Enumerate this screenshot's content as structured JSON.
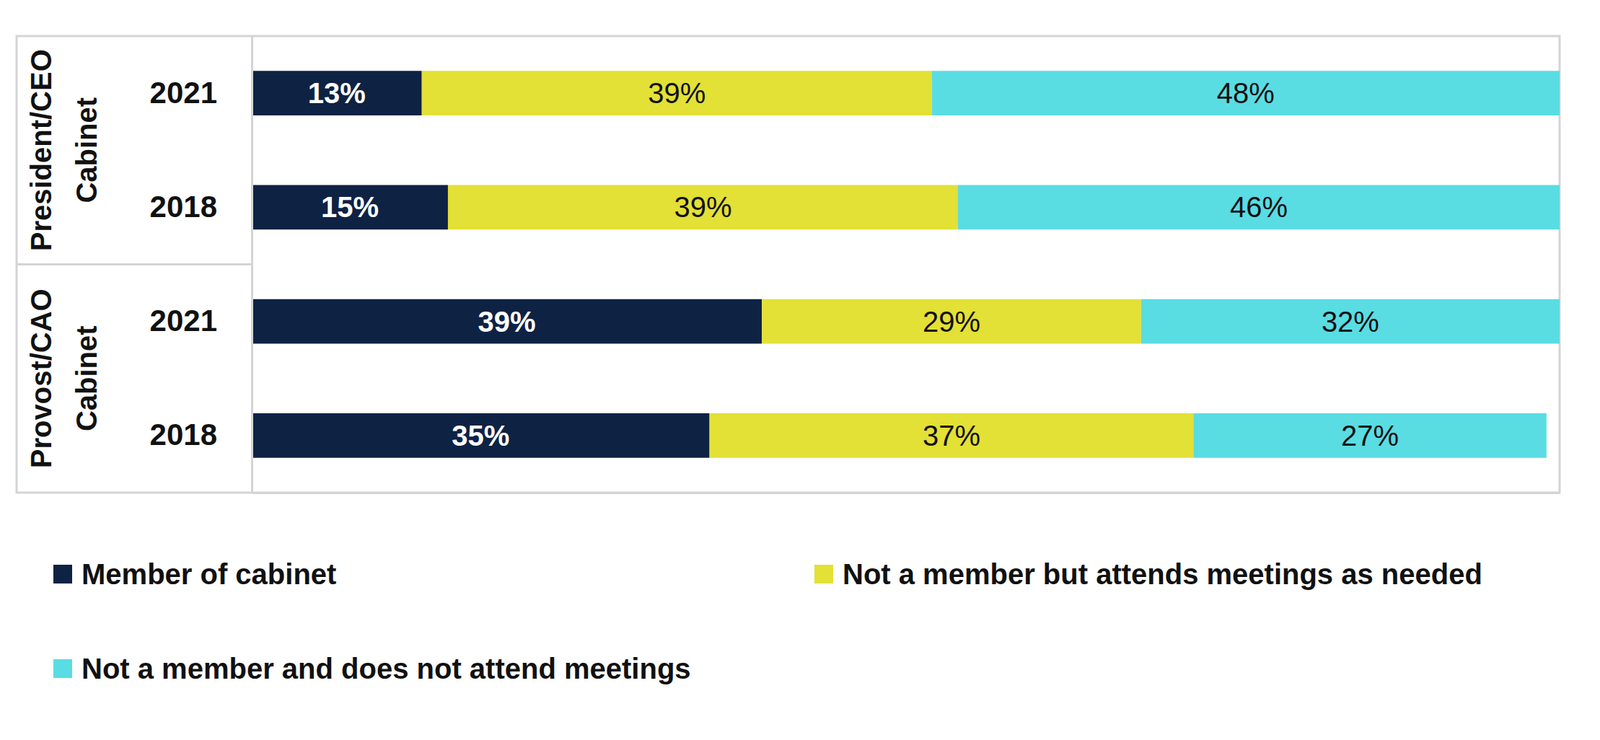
{
  "chart_data": {
    "type": "bar",
    "orientation": "horizontal",
    "stacked": true,
    "data_labels": true,
    "tick_labels": "y",
    "legend": "bottom",
    "groups": [
      "President/CEO Cabinet",
      "Provost/CAO Cabinet"
    ],
    "categories": [
      "2021",
      "2018",
      "2021",
      "2018"
    ],
    "xlim": [
      0,
      100
    ],
    "series": [
      {
        "name": "Member of cabinet",
        "color": "#0e2244",
        "values": [
          13,
          15,
          39,
          35
        ],
        "value_labels": [
          "13%",
          "15%",
          "39%",
          "35%"
        ]
      },
      {
        "name": "Not a member but attends meetings as needed",
        "color": "#e3e036",
        "values": [
          39,
          39,
          29,
          37
        ],
        "value_labels": [
          "39%",
          "39%",
          "29%",
          "37%"
        ]
      },
      {
        "name": "Not a member and does not attend meetings",
        "color": "#5adce3",
        "values": [
          48,
          46,
          32,
          27
        ],
        "value_labels": [
          "48%",
          "46%",
          "32%",
          "27%"
        ]
      }
    ]
  }
}
